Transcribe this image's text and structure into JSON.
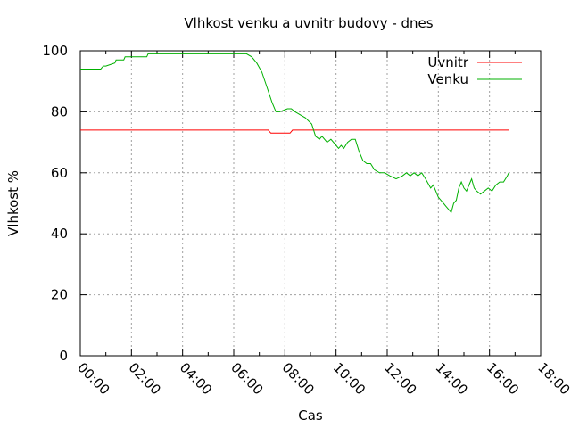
{
  "chart_data": {
    "type": "line",
    "title": "Vlhkost venku a uvnitr budovy - dnes",
    "xlabel": "Cas",
    "ylabel": "Vlhkost %",
    "xlim": [
      0,
      18
    ],
    "ylim": [
      0,
      100
    ],
    "x_ticks": [
      "00:00",
      "02:00",
      "04:00",
      "06:00",
      "08:00",
      "10:00",
      "12:00",
      "14:00",
      "16:00",
      "18:00"
    ],
    "y_ticks": [
      "0",
      "20",
      "40",
      "60",
      "80",
      "100"
    ],
    "grid": true,
    "legend_position": "top-right",
    "series": [
      {
        "name": "Uvnitr",
        "color": "#ff0000",
        "x": [
          0.0,
          7.35,
          7.45,
          8.2,
          8.3,
          16.75
        ],
        "y": [
          74,
          74,
          73,
          73,
          74,
          74
        ]
      },
      {
        "name": "Venku",
        "color": "#00b000",
        "x": [
          0.0,
          0.8,
          0.9,
          1.0,
          1.35,
          1.4,
          1.7,
          1.75,
          2.3,
          2.35,
          2.6,
          2.65,
          6.5,
          6.7,
          6.9,
          7.1,
          7.3,
          7.5,
          7.65,
          7.8,
          8.1,
          8.25,
          8.4,
          8.6,
          8.8,
          9.05,
          9.2,
          9.35,
          9.45,
          9.65,
          9.8,
          10.0,
          10.1,
          10.2,
          10.3,
          10.45,
          10.6,
          10.75,
          10.9,
          11.05,
          11.2,
          11.35,
          11.5,
          11.7,
          11.9,
          12.1,
          12.35,
          12.6,
          12.75,
          12.9,
          13.05,
          13.2,
          13.35,
          13.5,
          13.7,
          13.8,
          13.9,
          14.0,
          14.1,
          14.2,
          14.3,
          14.4,
          14.5,
          14.6,
          14.7,
          14.8,
          14.9,
          15.0,
          15.1,
          15.2,
          15.3,
          15.4,
          15.5,
          15.65,
          15.8,
          15.95,
          16.1,
          16.25,
          16.4,
          16.55,
          16.7,
          16.75
        ],
        "y": [
          94,
          94,
          95,
          95,
          96,
          97,
          97,
          98,
          98,
          98,
          98,
          99,
          99,
          98,
          96,
          93,
          88,
          83,
          80,
          80,
          81,
          81,
          80,
          79,
          78,
          76,
          72,
          71,
          72,
          70,
          71,
          69,
          68,
          69,
          68,
          70,
          71,
          71,
          67,
          64,
          63,
          63,
          61,
          60,
          60,
          59,
          58,
          59,
          60,
          59,
          60,
          59,
          60,
          58,
          55,
          56,
          54,
          52,
          51,
          50,
          49,
          48,
          47,
          50,
          51,
          55,
          57,
          55,
          54,
          56,
          58,
          55,
          54,
          53,
          54,
          55,
          54,
          56,
          57,
          57,
          59,
          60
        ]
      }
    ]
  }
}
